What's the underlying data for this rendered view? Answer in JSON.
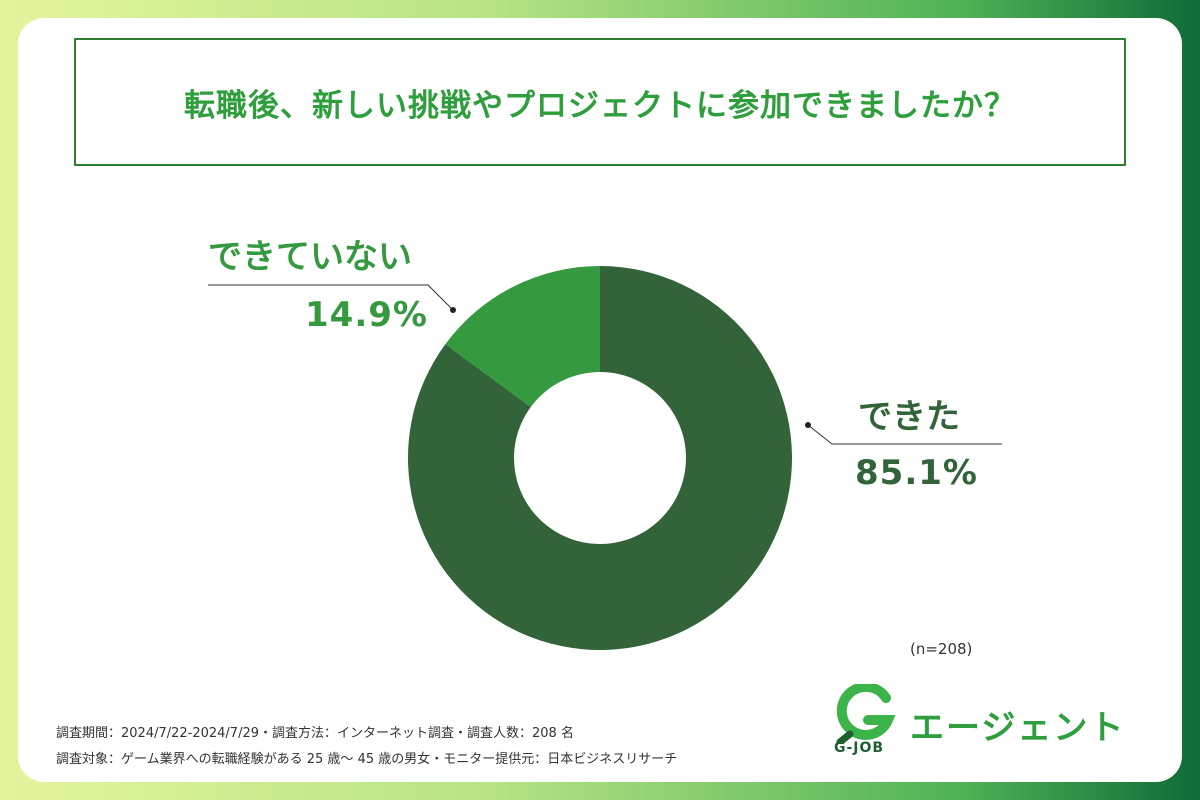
{
  "title": "転職後、新しい挑戦やプロジェクトに参加できましたか？",
  "chart_data": {
    "type": "pie",
    "title": "転職後、新しい挑戦やプロジェクトに参加できましたか？",
    "slices": [
      {
        "label": "できた",
        "value": 85.1,
        "display": "85.1%",
        "color": "#336338"
      },
      {
        "label": "できていない",
        "value": 14.9,
        "display": "14.9%",
        "color": "#34993f"
      }
    ],
    "sample_note": "(n=208)"
  },
  "footer": {
    "line1": "調査期間：2024/7/22-2024/7/29・調査方法：インターネット調査・調査人数：208 名",
    "line2": "調査対象：ゲーム業界への転職経験がある 25 歳〜 45 歳の男女・モニター提供元：日本ビジネスリサーチ"
  },
  "logo": {
    "sub": "G-JOB",
    "text": "エージェント"
  },
  "colors": {
    "title": "#2f9e3c",
    "accent_dark": "#336338",
    "accent_light": "#34993f"
  }
}
